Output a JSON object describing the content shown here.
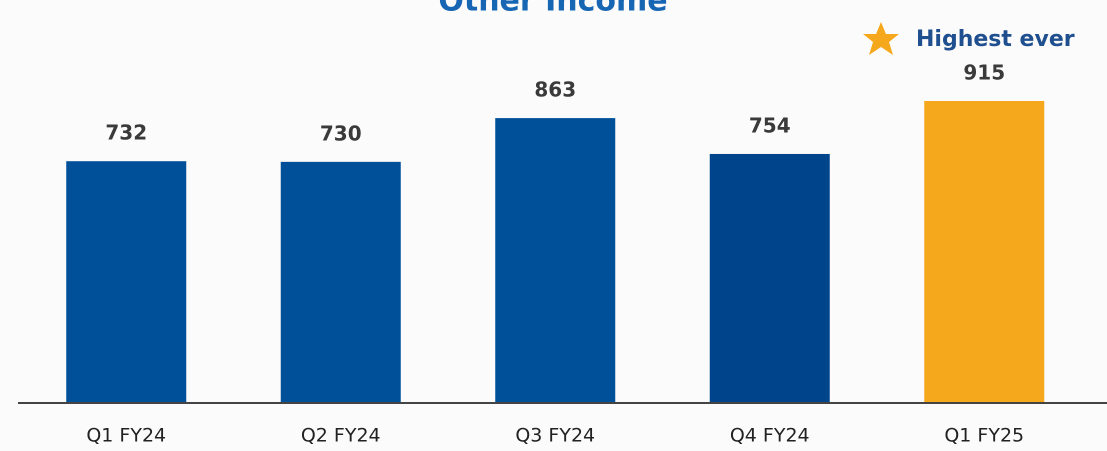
{
  "chart_data": {
    "type": "bar",
    "title": "Other Income",
    "annotation": "Highest ever",
    "categories": [
      "Q1 FY24",
      "Q2 FY24",
      "Q3 FY24",
      "Q4 FY24",
      "Q1 FY25"
    ],
    "values": [
      732,
      730,
      863,
      754,
      915
    ],
    "colors": [
      "#004f99",
      "#004f99",
      "#004f99",
      "#00458c",
      "#f6a81d"
    ]
  }
}
